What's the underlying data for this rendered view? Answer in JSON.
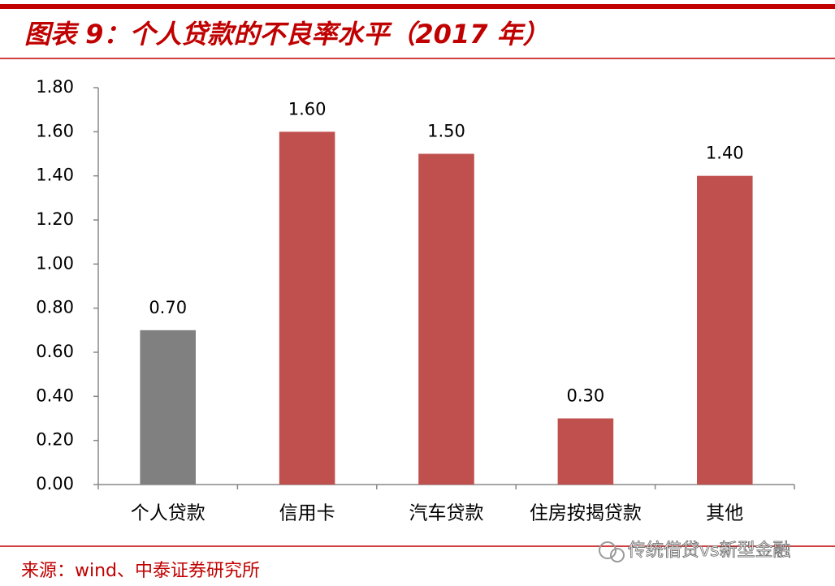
{
  "chart_data": {
    "type": "bar",
    "title": "图表 9：个人贷款的不良率水平（2017 年）",
    "source": "来源：wind、中泰证券研究所",
    "watermark": "传统借贷vs新型金融",
    "categories": [
      "个人贷款",
      "信用卡",
      "汽车贷款",
      "住房按揭贷款",
      "其他"
    ],
    "values": [
      0.7,
      1.6,
      1.5,
      0.3,
      1.4
    ],
    "value_labels": [
      "0.70",
      "1.60",
      "1.50",
      "0.30",
      "1.40"
    ],
    "colors": [
      "#808080",
      "#c0504d",
      "#c0504d",
      "#c0504d",
      "#c0504d"
    ],
    "ylim": [
      0,
      1.8
    ],
    "yticks": [
      {
        "value": 0,
        "label": "0.00"
      },
      {
        "value": 0.2,
        "label": "0.20"
      },
      {
        "value": 0.4,
        "label": "0.40"
      },
      {
        "value": 0.6,
        "label": "0.60"
      },
      {
        "value": 0.8,
        "label": "0.80"
      },
      {
        "value": 1.0,
        "label": "1.00"
      },
      {
        "value": 1.2,
        "label": "1.20"
      },
      {
        "value": 1.4,
        "label": "1.40"
      },
      {
        "value": 1.6,
        "label": "1.60"
      },
      {
        "value": 1.8,
        "label": "1.80"
      }
    ],
    "grid": false
  }
}
